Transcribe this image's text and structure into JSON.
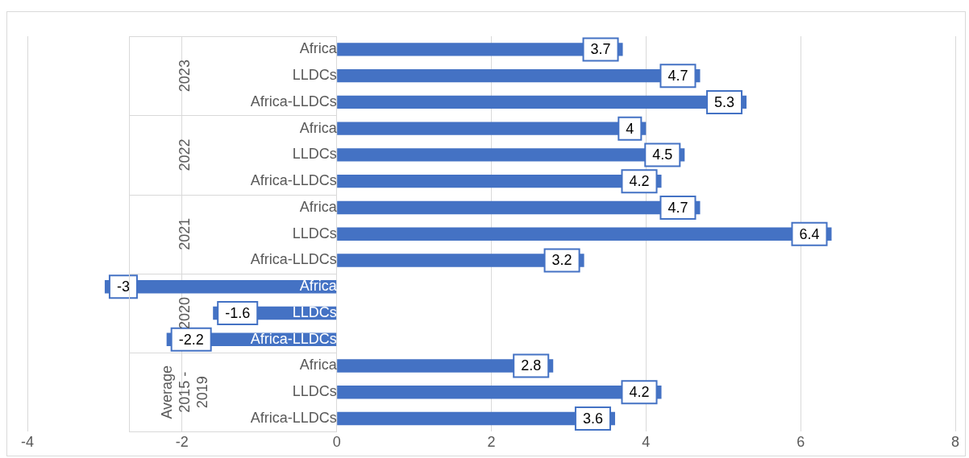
{
  "chart_data": {
    "type": "bar",
    "orientation": "horizontal",
    "categories": [
      "Africa",
      "LLDCs",
      "Africa-LLDCs",
      "Africa",
      "LLDCs",
      "Africa-LLDCs",
      "Africa",
      "LLDCs",
      "Africa-LLDCs",
      "Africa",
      "LLDCs",
      "Africa-LLDCs",
      "Africa",
      "LLDCs",
      "Africa-LLDCs"
    ],
    "values": [
      3.7,
      4.7,
      5.3,
      4,
      4.5,
      4.2,
      4.7,
      6.4,
      3.2,
      -3,
      -1.6,
      -2.2,
      2.8,
      4.2,
      3.6
    ],
    "color": "#4472c4",
    "xlim": [
      -4,
      8
    ],
    "xticks": [
      -4,
      -2,
      0,
      2,
      4,
      6,
      8
    ],
    "grid": "x",
    "legend": false,
    "data_labels": true,
    "annotations": [
      "2023",
      "2022",
      "2021",
      "2020",
      "Average 2015 - 2019"
    ]
  }
}
